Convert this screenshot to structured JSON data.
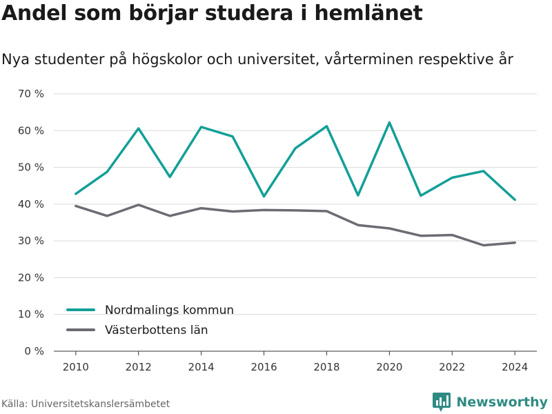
{
  "header": {
    "title": "Andel som börjar studera i hemlänet",
    "subtitle": "Nya studenter på högskolor och universitet, vårterminen respektive år"
  },
  "footer": {
    "source": "Källa: Universitetskanslersämbetet",
    "brand": "Newsworthy"
  },
  "colors": {
    "nordmaling": "#139f97",
    "vasterbotten": "#6b6b73",
    "grid": "#d9d9d9",
    "axis": "#333333",
    "brand": "#2e8b83"
  },
  "icons": {
    "brand_logo": "bar-chart-logo-icon"
  },
  "chart_data": {
    "type": "line",
    "title": "Andel som börjar studera i hemlänet",
    "subtitle": "Nya studenter på högskolor och universitet, vårterminen respektive år",
    "xlabel": "",
    "ylabel": "",
    "x": [
      2010,
      2011,
      2012,
      2013,
      2014,
      2015,
      2016,
      2017,
      2018,
      2019,
      2020,
      2021,
      2022,
      2023,
      2024
    ],
    "xticks": [
      2010,
      2012,
      2014,
      2016,
      2018,
      2020,
      2022,
      2024
    ],
    "xlim": [
      2009.3,
      2024.7
    ],
    "yticks": [
      0,
      10,
      20,
      30,
      40,
      50,
      60,
      70
    ],
    "ytick_labels": [
      "0 %",
      "10 %",
      "20 %",
      "30 %",
      "40 %",
      "50 %",
      "60 %",
      "70 %"
    ],
    "ylim": [
      0,
      70
    ],
    "grid": true,
    "legend_position": "bottom-left",
    "series": [
      {
        "name": "Nordmalings kommun",
        "color": "#139f97",
        "values": [
          42.8,
          48.8,
          60.6,
          47.4,
          61.0,
          58.4,
          42.1,
          55.2,
          61.2,
          42.4,
          62.2,
          42.3,
          47.2,
          49.0,
          41.2
        ]
      },
      {
        "name": "Västerbottens län",
        "color": "#6b6b73",
        "values": [
          39.5,
          36.8,
          39.8,
          36.8,
          38.9,
          38.0,
          38.4,
          38.3,
          38.1,
          34.3,
          33.4,
          31.4,
          31.6,
          28.8,
          29.5
        ]
      }
    ]
  }
}
